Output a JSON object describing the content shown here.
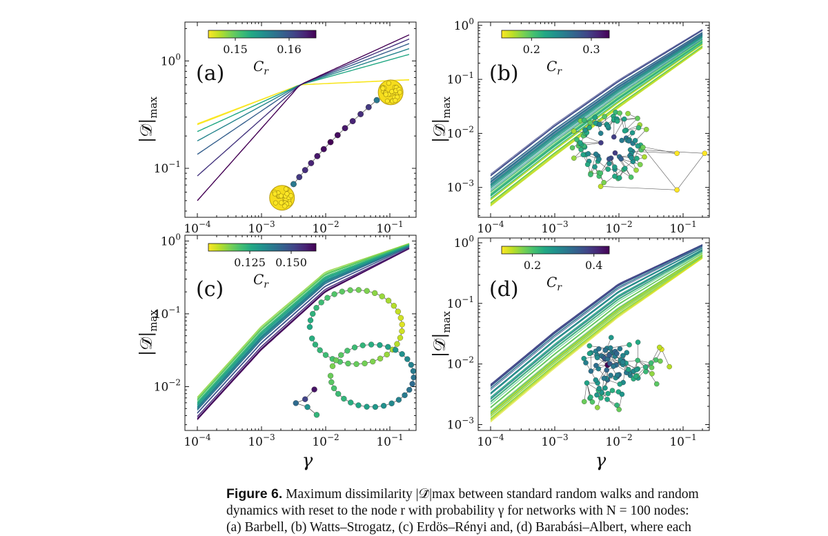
{
  "figure": {
    "caption_label": "Figure 6.",
    "caption_lines": [
      "Maximum dissimilarity |𝒟̄|max between standard random walks and random",
      "dynamics with reset to the node r with probability γ for networks with N = 100 nodes:",
      "(a) Barbell, (b) Watts–Strogatz, (c) Erdös–Rényi and, (d) Barabási–Albert, where each"
    ],
    "y_label": "|𝒟̄|max",
    "x_label": "γ",
    "colorbar_label": "Cr",
    "colormap": "viridis"
  },
  "chart_data": [
    {
      "panel": "(a)",
      "type": "line",
      "x_scale": "log",
      "y_scale": "log",
      "xlim": [
        0.0001,
        0.2
      ],
      "ylim": [
        0.035,
        2.3
      ],
      "x_ticks": [
        "10^-4",
        "10^-3",
        "10^-2",
        "10^-1"
      ],
      "y_ticks": [
        "10^-1",
        "10^0"
      ],
      "colorbar": {
        "ticks": [
          "0.15",
          "0.16"
        ],
        "range": [
          0.145,
          0.165
        ],
        "tick_values": [
          0.15,
          0.16
        ]
      },
      "series": [
        {
          "cr": 0.145,
          "points": [
            [
              0.0001,
              0.26
            ],
            [
              0.004,
              0.6
            ],
            [
              0.2,
              0.67
            ]
          ]
        },
        {
          "cr": 0.1452,
          "points": [
            [
              0.0001,
              0.255
            ],
            [
              0.004,
              0.6
            ],
            [
              0.2,
              0.665
            ]
          ]
        },
        {
          "cr": 0.153,
          "points": [
            [
              0.0001,
              0.22
            ],
            [
              0.004,
              0.6
            ],
            [
              0.2,
              1.15
            ]
          ]
        },
        {
          "cr": 0.156,
          "points": [
            [
              0.0001,
              0.18
            ],
            [
              0.004,
              0.6
            ],
            [
              0.2,
              1.3
            ]
          ]
        },
        {
          "cr": 0.159,
          "points": [
            [
              0.0001,
              0.135
            ],
            [
              0.004,
              0.6
            ],
            [
              0.2,
              1.45
            ]
          ]
        },
        {
          "cr": 0.162,
          "points": [
            [
              0.0001,
              0.085
            ],
            [
              0.004,
              0.6
            ],
            [
              0.2,
              1.6
            ]
          ]
        },
        {
          "cr": 0.165,
          "points": [
            [
              0.0001,
              0.05
            ],
            [
              0.004,
              0.6
            ],
            [
              0.2,
              1.75
            ]
          ]
        }
      ],
      "network": "barbell"
    },
    {
      "panel": "(b)",
      "type": "line",
      "x_scale": "log",
      "y_scale": "log",
      "xlim": [
        0.0001,
        0.2
      ],
      "ylim": [
        0.00028,
        1.15
      ],
      "x_ticks": [
        "10^-4",
        "10^-3",
        "10^-2",
        "10^-1"
      ],
      "y_ticks": [
        "10^-3",
        "10^-2",
        "10^-1",
        "10^0"
      ],
      "colorbar": {
        "ticks": [
          "0.2",
          "0.3"
        ],
        "range": [
          0.15,
          0.33
        ],
        "tick_values": [
          0.2,
          0.3
        ]
      },
      "band": {
        "count": 60,
        "low": [
          [
            0.0001,
            0.00045
          ],
          [
            0.001,
            0.0038
          ],
          [
            0.01,
            0.03
          ],
          [
            0.2,
            0.38
          ]
        ],
        "high": [
          [
            0.0001,
            0.0018
          ],
          [
            0.001,
            0.015
          ],
          [
            0.01,
            0.1
          ],
          [
            0.2,
            0.85
          ]
        ]
      },
      "network": "watts-strogatz"
    },
    {
      "panel": "(c)",
      "type": "line",
      "x_scale": "log",
      "y_scale": "log",
      "xlim": [
        0.0001,
        0.2
      ],
      "ylim": [
        0.0025,
        1.2
      ],
      "x_ticks": [
        "10^-4",
        "10^-3",
        "10^-2",
        "10^-1"
      ],
      "y_ticks": [
        "10^-2",
        "10^-1",
        "10^0"
      ],
      "colorbar": {
        "ticks": [
          "0.125",
          "0.150"
        ],
        "range": [
          0.1,
          0.165
        ],
        "tick_values": [
          0.125,
          0.15
        ]
      },
      "band": {
        "count": 55,
        "low": [
          [
            0.0001,
            0.0035
          ],
          [
            0.001,
            0.032
          ],
          [
            0.01,
            0.2
          ],
          [
            0.2,
            0.78
          ]
        ],
        "high": [
          [
            0.0001,
            0.0072
          ],
          [
            0.001,
            0.068
          ],
          [
            0.01,
            0.38
          ],
          [
            0.2,
            0.93
          ]
        ]
      },
      "network": "erdos-renyi"
    },
    {
      "panel": "(d)",
      "type": "line",
      "x_scale": "log",
      "y_scale": "log",
      "xlim": [
        0.0001,
        0.2
      ],
      "ylim": [
        0.0008,
        1.2
      ],
      "x_ticks": [
        "10^-4",
        "10^-3",
        "10^-2",
        "10^-1"
      ],
      "y_ticks": [
        "10^-3",
        "10^-2",
        "10^-1",
        "10^0"
      ],
      "colorbar": {
        "ticks": [
          "0.2",
          "0.4"
        ],
        "range": [
          0.1,
          0.45
        ],
        "tick_values": [
          0.2,
          0.4
        ]
      },
      "band": {
        "count": 55,
        "low": [
          [
            0.0001,
            0.0011
          ],
          [
            0.001,
            0.0085
          ],
          [
            0.01,
            0.06
          ],
          [
            0.2,
            0.55
          ]
        ],
        "high": [
          [
            0.0001,
            0.0048
          ],
          [
            0.001,
            0.036
          ],
          [
            0.01,
            0.22
          ],
          [
            0.2,
            0.95
          ]
        ]
      },
      "network": "barabasi-albert"
    }
  ]
}
